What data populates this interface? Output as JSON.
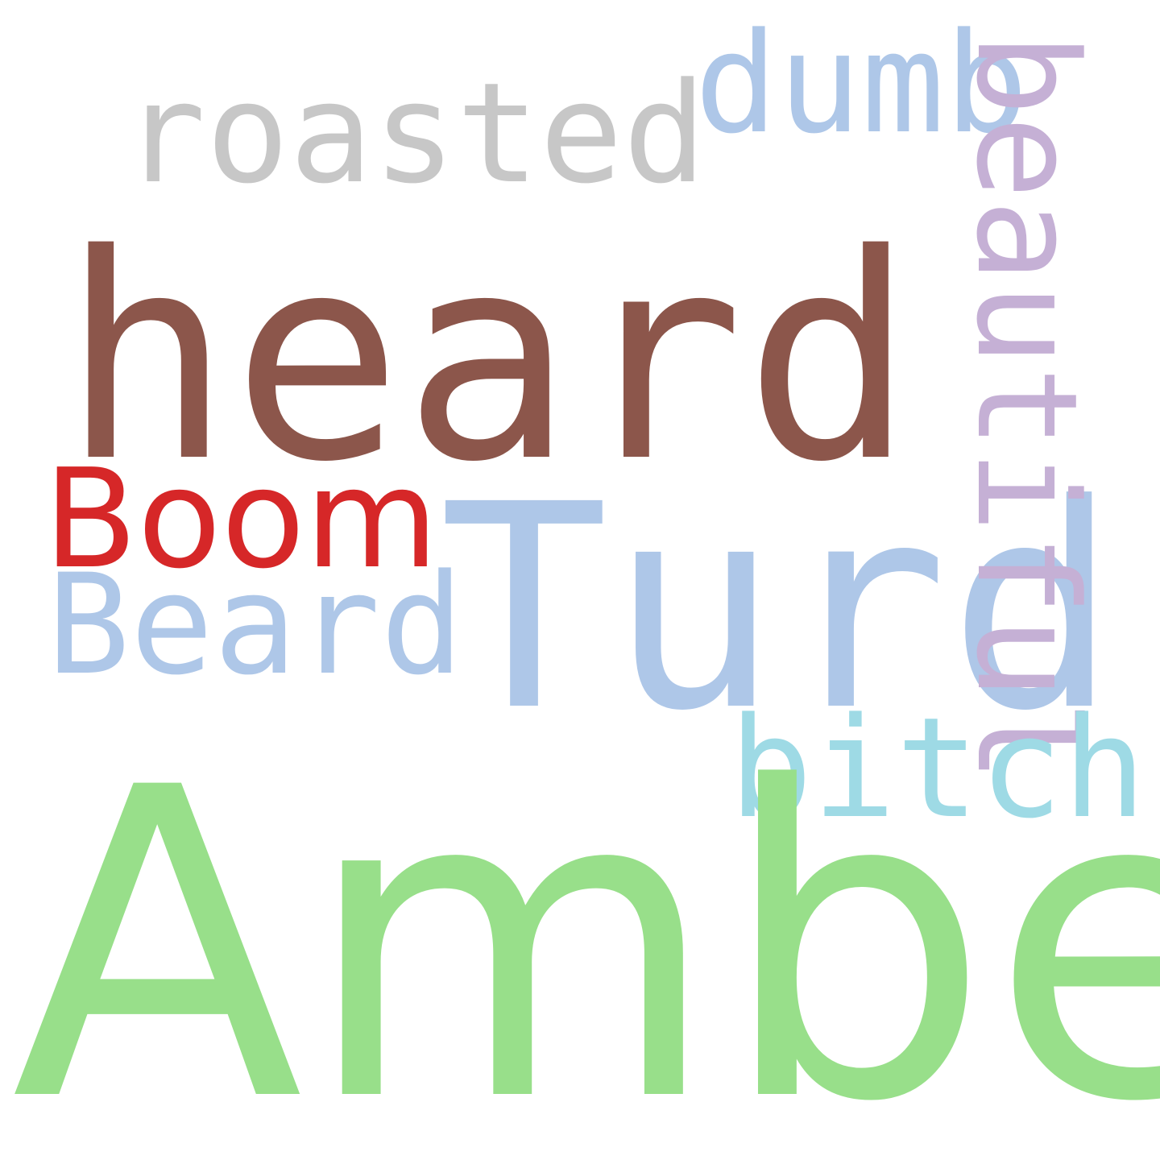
{
  "words": {
    "roasted": {
      "text": "roasted",
      "color": "#c7c7c7"
    },
    "dumb": {
      "text": "dumb",
      "color": "#aec7e8"
    },
    "heard": {
      "text": "heard",
      "color": "#8c564b"
    },
    "boom": {
      "text": "Boom",
      "color": "#d62728"
    },
    "beard": {
      "text": "Beard",
      "color": "#aec7e8"
    },
    "turd": {
      "text": "Turd",
      "color": "#aec7e8"
    },
    "beautiful": {
      "text": "beautiful",
      "color": "#c5b0d5"
    },
    "bitch": {
      "text": "bitch",
      "color": "#9edae5"
    },
    "amber": {
      "text": "Amber",
      "color": "#98df8a"
    }
  }
}
